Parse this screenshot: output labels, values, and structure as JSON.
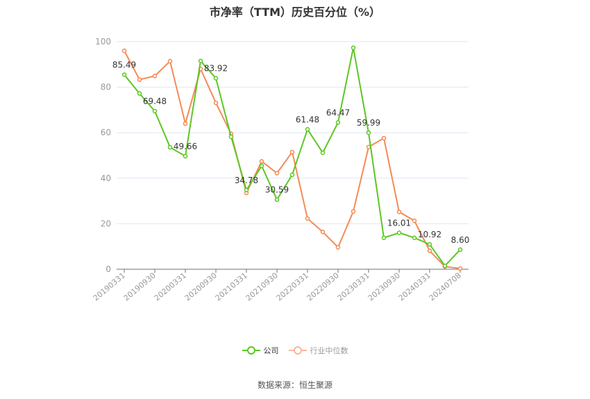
{
  "title": "市净率（TTM）历史百分位（%）",
  "source": "数据来源：恒生聚源",
  "colors": {
    "company": "#5cc623",
    "industry": "#f58a55",
    "grid": "#e0e6f1",
    "axis": "#6e7079",
    "label": "#999999"
  },
  "legend": [
    {
      "name": "公司",
      "color": "#5cc623"
    },
    {
      "name": "行业中位数",
      "color": "#f8b79a"
    }
  ],
  "chart_data": {
    "type": "line",
    "title": "市净率（TTM）历史百分位（%）",
    "xlabel": "",
    "ylabel": "",
    "ylim": [
      0,
      100
    ],
    "yticks": [
      0,
      20,
      40,
      60,
      80,
      100
    ],
    "grid": true,
    "legend_position": "bottom",
    "x_tick_labels": [
      "20190331",
      "20190930",
      "20200331",
      "20200930",
      "20210331",
      "20210930",
      "20220331",
      "20220930",
      "20230331",
      "20230930",
      "20240331",
      "20240708"
    ],
    "x": [
      "20190331",
      "20190630",
      "20190930",
      "20191231",
      "20200331",
      "20200630",
      "20200930",
      "20201231",
      "20210331",
      "20210630",
      "20210930",
      "20211231",
      "20220331",
      "20220630",
      "20220930",
      "20221231",
      "20230331",
      "20230630",
      "20230930",
      "20231231",
      "20240331",
      "20240630",
      "20240708"
    ],
    "series": [
      {
        "name": "公司",
        "values": [
          85.49,
          77.2,
          69.48,
          53.6,
          49.66,
          91.5,
          83.92,
          58.2,
          34.78,
          45.4,
          30.59,
          41.5,
          61.48,
          51.2,
          64.47,
          97.3,
          59.99,
          13.8,
          16.01,
          13.8,
          10.92,
          1.5,
          8.6
        ],
        "labels": {
          "0": "85.49",
          "2": "69.48",
          "4": "49.66",
          "6": "83.92",
          "8": "34.78",
          "10": "30.59",
          "12": "61.48",
          "14": "64.47",
          "16": "59.99",
          "18": "16.01",
          "20": "10.92",
          "22": "8.60"
        }
      },
      {
        "name": "行业中位数",
        "values": [
          96.0,
          83.3,
          84.9,
          91.4,
          64.0,
          88.0,
          73.1,
          59.5,
          33.5,
          47.4,
          42.2,
          51.5,
          22.3,
          16.4,
          9.6,
          25.4,
          53.7,
          57.6,
          25.2,
          21.3,
          8.1,
          1.2,
          0.3
        ]
      }
    ]
  }
}
